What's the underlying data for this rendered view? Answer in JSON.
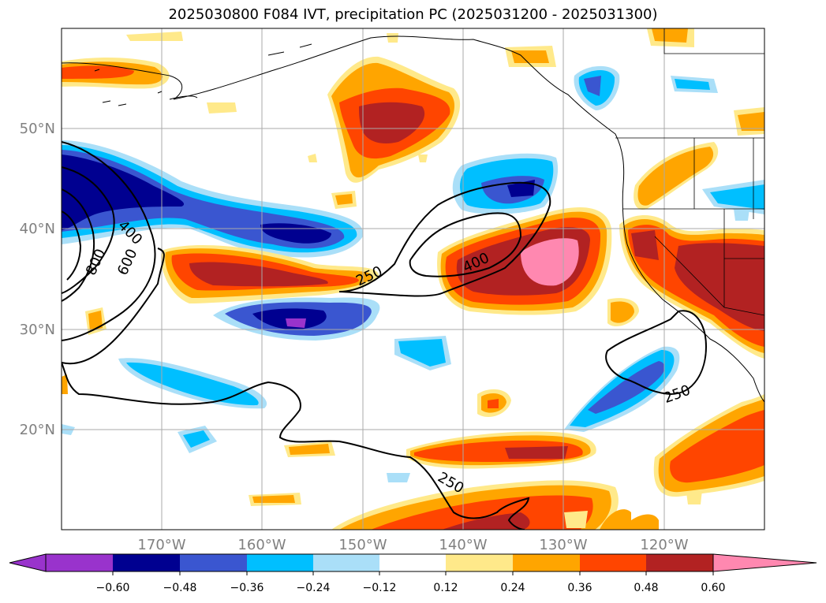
{
  "title": "2025030800 F084 IVT, precipitation PC (2025031200 - 2025031300)",
  "map": {
    "lat_labels": [
      "50°N",
      "40°N",
      "30°N",
      "20°N"
    ],
    "lon_labels": [
      "170°W",
      "160°W",
      "150°W",
      "140°W",
      "130°W",
      "120°W"
    ],
    "contour_labels": [
      "800",
      "600",
      "400",
      "250",
      "400",
      "250",
      "250"
    ]
  },
  "colorbar": {
    "ticks": [
      "−0.60",
      "−0.48",
      "−0.36",
      "−0.24",
      "−0.12",
      "0.12",
      "0.24",
      "0.36",
      "0.48",
      "0.60"
    ],
    "colors": [
      "#9933cc",
      "#000090",
      "#3a56d0",
      "#00bfff",
      "#aadff8",
      "#ffffff",
      "#ffe98a",
      "#ffa500",
      "#ff4500",
      "#b22222",
      "#ff88b0"
    ]
  }
}
